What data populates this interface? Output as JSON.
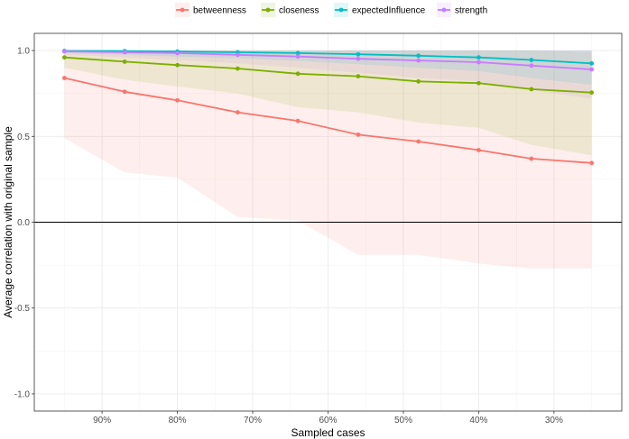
{
  "chart_data": {
    "type": "line",
    "title": "",
    "xlabel": "Sampled cases",
    "ylabel": "Average correlation with original sample",
    "x": [
      0.95,
      0.87,
      0.8,
      0.72,
      0.64,
      0.56,
      0.48,
      0.4,
      0.33,
      0.25
    ],
    "x_ticks": [
      0.9,
      0.8,
      0.7,
      0.6,
      0.5,
      0.4,
      0.3
    ],
    "x_tick_labels": [
      "90%",
      "80%",
      "70%",
      "60%",
      "50%",
      "40%",
      "30%"
    ],
    "x_reversed": true,
    "xlim": [
      0.25,
      0.95
    ],
    "ylim": [
      -1.0,
      1.0
    ],
    "y_ticks": [
      -1.0,
      -0.5,
      0.0,
      0.5,
      1.0
    ],
    "y_tick_labels": [
      "-1.0",
      "-0.5",
      "0.0",
      "0.5",
      "1.0"
    ],
    "reference_line_y": 0.0,
    "grid": true,
    "legend_position": "top",
    "series": [
      {
        "name": "betweenness",
        "color": "#F8766D",
        "values": [
          0.84,
          0.76,
          0.71,
          0.64,
          0.59,
          0.51,
          0.47,
          0.42,
          0.37,
          0.345
        ],
        "lower": [
          0.49,
          0.29,
          0.26,
          0.03,
          0.01,
          -0.19,
          -0.19,
          -0.24,
          -0.27,
          -0.27
        ],
        "upper": [
          1.0,
          1.0,
          1.0,
          1.0,
          1.0,
          1.0,
          1.0,
          1.0,
          1.0,
          1.0
        ]
      },
      {
        "name": "closeness",
        "color": "#7CAE00",
        "values": [
          0.96,
          0.935,
          0.915,
          0.895,
          0.865,
          0.85,
          0.82,
          0.81,
          0.775,
          0.755
        ],
        "lower": [
          0.9,
          0.83,
          0.79,
          0.75,
          0.67,
          0.64,
          0.58,
          0.55,
          0.45,
          0.39
        ],
        "upper": [
          1.0,
          1.0,
          1.0,
          1.0,
          1.0,
          1.0,
          1.0,
          1.0,
          1.0,
          0.99
        ]
      },
      {
        "name": "expectedInfluence",
        "color": "#00BFC4",
        "values": [
          0.998,
          0.997,
          0.994,
          0.99,
          0.985,
          0.978,
          0.97,
          0.96,
          0.945,
          0.925
        ],
        "lower": [
          0.985,
          0.975,
          0.965,
          0.955,
          0.94,
          0.92,
          0.9,
          0.88,
          0.84,
          0.8
        ],
        "upper": [
          1.0,
          1.0,
          1.0,
          1.0,
          1.0,
          1.0,
          1.0,
          1.0,
          1.0,
          1.0
        ]
      },
      {
        "name": "strength",
        "color": "#C77CFF",
        "values": [
          0.995,
          0.99,
          0.985,
          0.975,
          0.965,
          0.952,
          0.942,
          0.932,
          0.912,
          0.89
        ],
        "lower": [
          0.975,
          0.96,
          0.945,
          0.925,
          0.9,
          0.87,
          0.84,
          0.82,
          0.77,
          0.72
        ],
        "upper": [
          1.0,
          1.0,
          1.0,
          1.0,
          1.0,
          1.0,
          1.0,
          1.0,
          1.0,
          1.0
        ]
      }
    ]
  }
}
